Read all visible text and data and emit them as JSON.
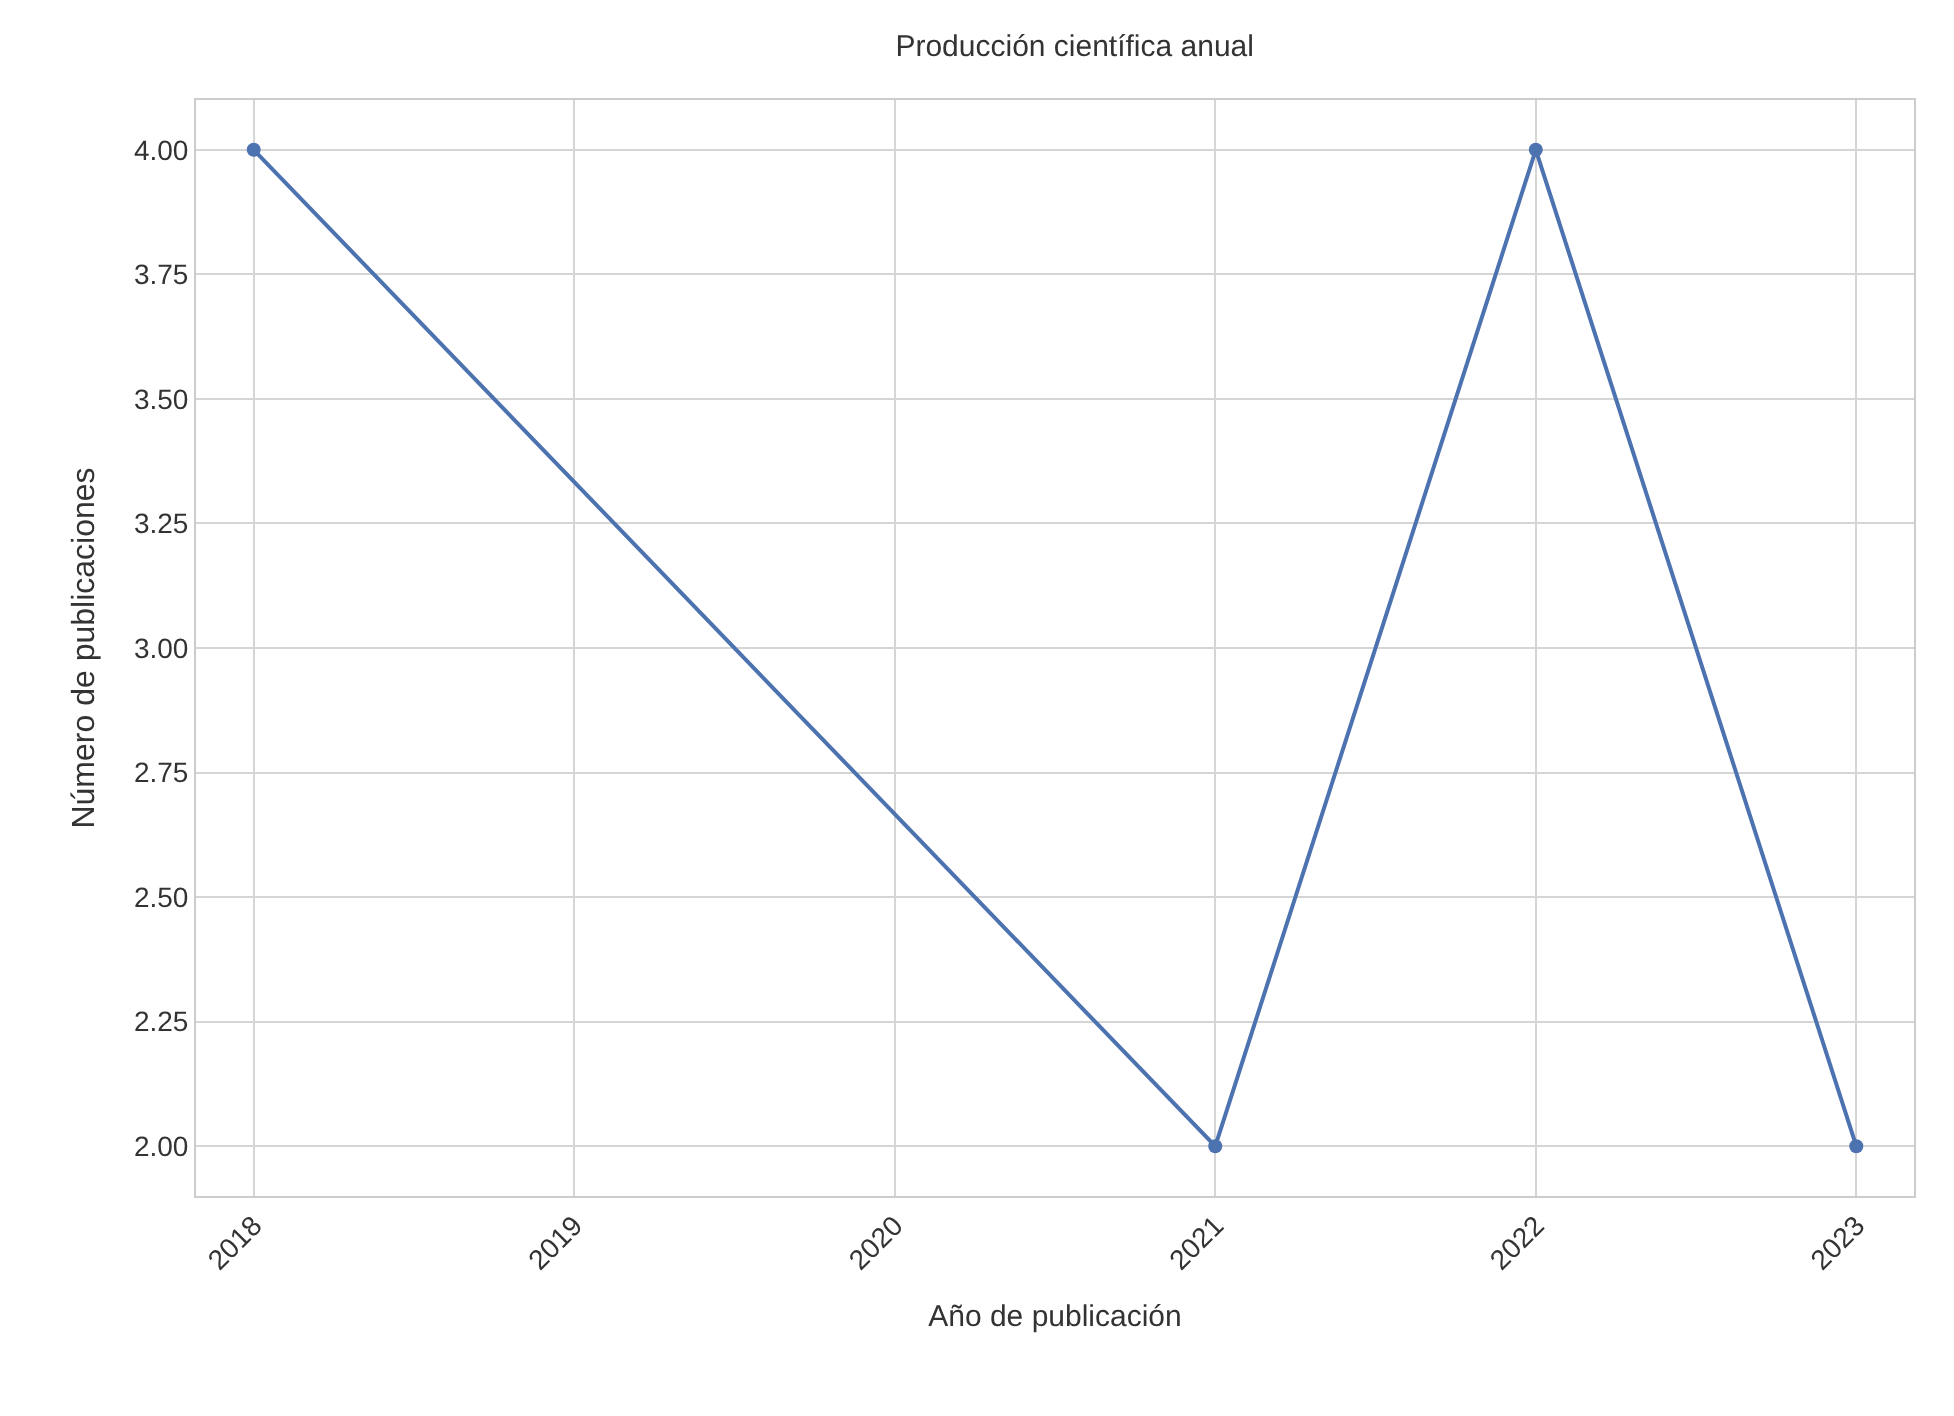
{
  "chart_data": {
    "type": "line",
    "title": "Producción científica anual",
    "xlabel": "Año de publicación",
    "ylabel": "Número de publicaciones",
    "x": [
      2018,
      2021,
      2022,
      2023
    ],
    "series": [
      {
        "color": "#4c72b0",
        "values": [
          4,
          2,
          4,
          2
        ]
      }
    ],
    "xlim": [
      2017.82,
      2023.18
    ],
    "xticks": [
      2018,
      2019,
      2020,
      2021,
      2022,
      2023
    ],
    "ylim": [
      1.9,
      4.1
    ],
    "yticks": [
      {
        "value": 2,
        "label": "2.00"
      },
      {
        "value": 2.25,
        "label": "2.25"
      },
      {
        "value": 2.5,
        "label": "2.50"
      },
      {
        "value": 2.75,
        "label": "2.75"
      },
      {
        "value": 3,
        "label": "3.00"
      },
      {
        "value": 3.25,
        "label": "3.25"
      },
      {
        "value": 3.5,
        "label": "3.50"
      },
      {
        "value": 3.75,
        "label": "3.75"
      },
      {
        "value": 4,
        "label": "4.00"
      }
    ],
    "grid": true,
    "marker": "circle",
    "line_style": "solid"
  }
}
